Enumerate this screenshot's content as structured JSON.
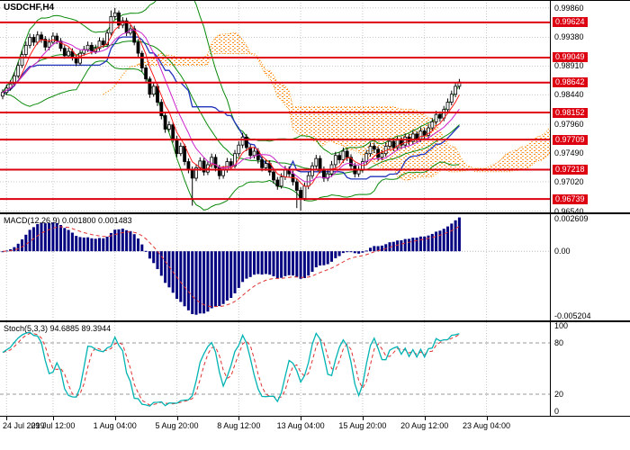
{
  "chart_data": {
    "type": "candlestick",
    "symbol": "USDCHF,H4",
    "timeframe": "H4",
    "price_panel": {
      "axis_labels": [
        "0.99860",
        "0.99380",
        "0.98910",
        "0.98440",
        "0.97960",
        "0.97490",
        "0.97020",
        "0.96540"
      ],
      "level_labels": [
        "0.99624",
        "0.99049",
        "0.98642",
        "0.98152",
        "0.97709",
        "0.97218",
        "0.96739"
      ],
      "price_range": [
        0.9652,
        0.9999
      ],
      "level_color": "#dd0011"
    },
    "time_axis": {
      "labels": [
        "24 Jul 2019",
        "29 Jul 12:00",
        "1 Aug 04:00",
        "5 Aug 20:00",
        "8 Aug 12:00",
        "13 Aug 04:00",
        "15 Aug 20:00",
        "20 Aug 12:00",
        "23 Aug 04:00"
      ],
      "bar_indices": [
        1,
        13,
        29,
        45,
        61,
        77,
        93,
        109,
        125
      ]
    },
    "overlay_colors": {
      "bollinger": "#0b8a0b",
      "ma_fast": "#ff1a1a",
      "ma_mid": "#cc22cc",
      "kijun": "#2233bb",
      "cloud_fill": "#ff9933",
      "cloud_edge": "#ff8800"
    },
    "indicators": {
      "macd": {
        "label": "MACD(12,26,9) 0.001800 0.001483",
        "axis": [
          {
            "v": 0.002609,
            "t": "0.002609"
          },
          {
            "v": 0,
            "t": "0.00"
          },
          {
            "v": -0.005204,
            "t": "-0.005204"
          }
        ],
        "range": [
          -0.0056,
          0.003
        ],
        "histogram_color": "#000080",
        "signal_color": "#e03030"
      },
      "stoch": {
        "label": "Stoch(5,3,3) 94.6885 89.3944",
        "axis": [
          {
            "v": 100,
            "t": "100"
          },
          {
            "v": 80,
            "t": "80"
          },
          {
            "v": 20,
            "t": "20"
          },
          {
            "v": 0,
            "t": "0"
          }
        ],
        "levels": [
          80,
          20
        ],
        "range": [
          0,
          100
        ],
        "main_color": "#00b3b3",
        "signal_color": "#e03030"
      }
    },
    "candles": [
      [
        0.9842,
        0.9853,
        0.9837,
        0.9848
      ],
      [
        0.9848,
        0.9861,
        0.9844,
        0.9855
      ],
      [
        0.9855,
        0.9868,
        0.9851,
        0.9862
      ],
      [
        0.9862,
        0.9881,
        0.9858,
        0.9875
      ],
      [
        0.9875,
        0.9898,
        0.9871,
        0.9892
      ],
      [
        0.9892,
        0.9916,
        0.9888,
        0.991
      ],
      [
        0.991,
        0.9931,
        0.9905,
        0.9925
      ],
      [
        0.9925,
        0.9944,
        0.992,
        0.9938
      ],
      [
        0.9938,
        0.9943,
        0.9924,
        0.993
      ],
      [
        0.993,
        0.9948,
        0.9926,
        0.9942
      ],
      [
        0.9942,
        0.9947,
        0.9929,
        0.9935
      ],
      [
        0.9935,
        0.994,
        0.9916,
        0.9922
      ],
      [
        0.9922,
        0.9936,
        0.9917,
        0.993
      ],
      [
        0.993,
        0.9946,
        0.9925,
        0.994
      ],
      [
        0.994,
        0.9945,
        0.9927,
        0.9932
      ],
      [
        0.9932,
        0.9937,
        0.9915,
        0.992
      ],
      [
        0.992,
        0.9925,
        0.9903,
        0.9908
      ],
      [
        0.9908,
        0.9921,
        0.9904,
        0.9915
      ],
      [
        0.9915,
        0.992,
        0.99,
        0.9905
      ],
      [
        0.9905,
        0.991,
        0.9891,
        0.9896
      ],
      [
        0.9896,
        0.9917,
        0.9892,
        0.9912
      ],
      [
        0.9912,
        0.9924,
        0.9908,
        0.9918
      ],
      [
        0.9918,
        0.9931,
        0.9914,
        0.9925
      ],
      [
        0.9925,
        0.993,
        0.991,
        0.9915
      ],
      [
        0.9915,
        0.9926,
        0.9911,
        0.992
      ],
      [
        0.992,
        0.9938,
        0.9916,
        0.9932
      ],
      [
        0.9932,
        0.9937,
        0.9921,
        0.9926
      ],
      [
        0.9926,
        0.9951,
        0.9922,
        0.9945
      ],
      [
        0.9945,
        0.9982,
        0.9941,
        0.9972
      ],
      [
        0.9972,
        0.9986,
        0.9967,
        0.9978
      ],
      [
        0.9978,
        0.9982,
        0.9952,
        0.9958
      ],
      [
        0.9958,
        0.9971,
        0.9953,
        0.9965
      ],
      [
        0.9965,
        0.997,
        0.994,
        0.9945
      ],
      [
        0.9945,
        0.9958,
        0.9941,
        0.9952
      ],
      [
        0.9952,
        0.9957,
        0.9925,
        0.993
      ],
      [
        0.993,
        0.9935,
        0.9906,
        0.9912
      ],
      [
        0.9912,
        0.9916,
        0.9882,
        0.9888
      ],
      [
        0.9888,
        0.9893,
        0.9864,
        0.987
      ],
      [
        0.987,
        0.9874,
        0.9839,
        0.9845
      ],
      [
        0.9845,
        0.9864,
        0.9841,
        0.9858
      ],
      [
        0.9858,
        0.9862,
        0.9826,
        0.9832
      ],
      [
        0.9832,
        0.9837,
        0.9804,
        0.981
      ],
      [
        0.981,
        0.9815,
        0.9782,
        0.9788
      ],
      [
        0.9788,
        0.9801,
        0.9784,
        0.9795
      ],
      [
        0.9795,
        0.9799,
        0.9766,
        0.9772
      ],
      [
        0.9772,
        0.9777,
        0.9742,
        0.9748
      ],
      [
        0.9748,
        0.9766,
        0.9744,
        0.976
      ],
      [
        0.976,
        0.9764,
        0.9729,
        0.9735
      ],
      [
        0.9735,
        0.974,
        0.9716,
        0.9722
      ],
      [
        0.9722,
        0.9727,
        0.9663,
        0.9708
      ],
      [
        0.9708,
        0.9731,
        0.9703,
        0.9725
      ],
      [
        0.9725,
        0.9742,
        0.972,
        0.9736
      ],
      [
        0.9736,
        0.9741,
        0.9712,
        0.9718
      ],
      [
        0.9718,
        0.9736,
        0.9713,
        0.973
      ],
      [
        0.973,
        0.9748,
        0.9725,
        0.9742
      ],
      [
        0.9742,
        0.9747,
        0.9719,
        0.9725
      ],
      [
        0.9725,
        0.973,
        0.9706,
        0.9712
      ],
      [
        0.9712,
        0.9728,
        0.9707,
        0.9722
      ],
      [
        0.9722,
        0.9741,
        0.9717,
        0.9735
      ],
      [
        0.9735,
        0.974,
        0.9722,
        0.9728
      ],
      [
        0.9728,
        0.9754,
        0.9724,
        0.9748
      ],
      [
        0.9748,
        0.9768,
        0.9743,
        0.9762
      ],
      [
        0.9762,
        0.9782,
        0.9757,
        0.9775
      ],
      [
        0.9775,
        0.978,
        0.9752,
        0.9758
      ],
      [
        0.9758,
        0.9763,
        0.9739,
        0.9745
      ],
      [
        0.9745,
        0.9758,
        0.974,
        0.9752
      ],
      [
        0.9752,
        0.9757,
        0.9732,
        0.9738
      ],
      [
        0.9738,
        0.9743,
        0.9719,
        0.9725
      ],
      [
        0.9725,
        0.9738,
        0.972,
        0.9732
      ],
      [
        0.9732,
        0.9737,
        0.9712,
        0.9718
      ],
      [
        0.9718,
        0.9723,
        0.9699,
        0.9705
      ],
      [
        0.9705,
        0.971,
        0.9689,
        0.9695
      ],
      [
        0.9695,
        0.9716,
        0.9691,
        0.971
      ],
      [
        0.971,
        0.9728,
        0.9705,
        0.9722
      ],
      [
        0.9722,
        0.9727,
        0.9709,
        0.9715
      ],
      [
        0.9715,
        0.972,
        0.9696,
        0.9702
      ],
      [
        0.9702,
        0.9707,
        0.9659,
        0.9688
      ],
      [
        0.9688,
        0.9693,
        0.9655,
        0.9675
      ],
      [
        0.9675,
        0.9701,
        0.9671,
        0.9695
      ],
      [
        0.9695,
        0.9718,
        0.969,
        0.9712
      ],
      [
        0.9712,
        0.9734,
        0.9707,
        0.9728
      ],
      [
        0.9728,
        0.9746,
        0.9723,
        0.974
      ],
      [
        0.974,
        0.9745,
        0.9716,
        0.9722
      ],
      [
        0.9722,
        0.9727,
        0.9702,
        0.9708
      ],
      [
        0.9708,
        0.9721,
        0.9703,
        0.9715
      ],
      [
        0.9715,
        0.9736,
        0.971,
        0.973
      ],
      [
        0.973,
        0.9751,
        0.9725,
        0.9745
      ],
      [
        0.9745,
        0.975,
        0.9732,
        0.9738
      ],
      [
        0.9738,
        0.9758,
        0.9733,
        0.9752
      ],
      [
        0.9752,
        0.9757,
        0.9736,
        0.9742
      ],
      [
        0.9742,
        0.9747,
        0.9722,
        0.9728
      ],
      [
        0.9728,
        0.9733,
        0.9709,
        0.9715
      ],
      [
        0.9715,
        0.9728,
        0.971,
        0.9722
      ],
      [
        0.9722,
        0.9741,
        0.9717,
        0.9735
      ],
      [
        0.9735,
        0.9754,
        0.973,
        0.9748
      ],
      [
        0.9748,
        0.9766,
        0.9743,
        0.976
      ],
      [
        0.976,
        0.9766,
        0.9749,
        0.9755
      ],
      [
        0.9755,
        0.976,
        0.9736,
        0.9742
      ],
      [
        0.9742,
        0.9754,
        0.9737,
        0.9748
      ],
      [
        0.9748,
        0.9766,
        0.9743,
        0.976
      ],
      [
        0.976,
        0.9774,
        0.9755,
        0.9768
      ],
      [
        0.9768,
        0.9773,
        0.9752,
        0.9758
      ],
      [
        0.9758,
        0.9776,
        0.9753,
        0.977
      ],
      [
        0.977,
        0.9775,
        0.9756,
        0.9762
      ],
      [
        0.9762,
        0.9781,
        0.9757,
        0.9775
      ],
      [
        0.9775,
        0.978,
        0.9762,
        0.9768
      ],
      [
        0.9768,
        0.9786,
        0.9763,
        0.978
      ],
      [
        0.978,
        0.9785,
        0.9766,
        0.9772
      ],
      [
        0.9772,
        0.9791,
        0.9767,
        0.9785
      ],
      [
        0.9785,
        0.979,
        0.9772,
        0.9778
      ],
      [
        0.9778,
        0.9796,
        0.9773,
        0.979
      ],
      [
        0.979,
        0.9806,
        0.9785,
        0.98
      ],
      [
        0.98,
        0.9818,
        0.9795,
        0.9812
      ],
      [
        0.9812,
        0.9817,
        0.98,
        0.9806
      ],
      [
        0.9806,
        0.9826,
        0.9801,
        0.982
      ],
      [
        0.982,
        0.9838,
        0.9815,
        0.9832
      ],
      [
        0.9832,
        0.9851,
        0.9827,
        0.9845
      ],
      [
        0.9845,
        0.9864,
        0.984,
        0.9858
      ],
      [
        0.9858,
        0.987,
        0.9853,
        0.9865
      ]
    ]
  }
}
